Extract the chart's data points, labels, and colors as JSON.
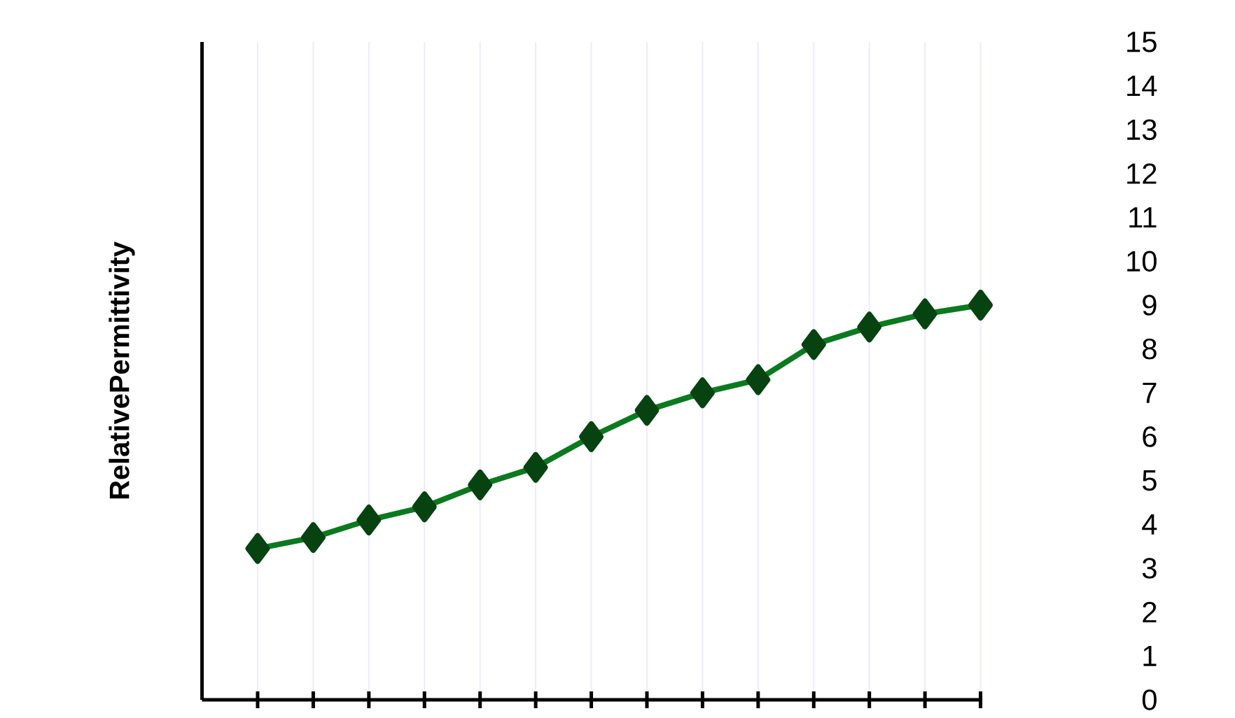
{
  "chart_data": {
    "type": "line",
    "ylabel": "RelativePermittivity",
    "categories": [
      null,
      null,
      null,
      null,
      null,
      null,
      null,
      null,
      null,
      null,
      null,
      null,
      null,
      null
    ],
    "ylim": [
      0,
      15
    ],
    "yticks": [
      0,
      1,
      2,
      3,
      4,
      5,
      6,
      7,
      8,
      9,
      10,
      11,
      12,
      13,
      14,
      15
    ],
    "grid": "x",
    "marker": "diamond",
    "line_style": "solid",
    "series": [
      {
        "color": "#0b7a1f",
        "values": [
          3.45,
          3.7,
          4.1,
          4.4,
          4.9,
          5.3,
          6.0,
          6.6,
          7.0,
          7.3,
          8.1,
          8.5,
          8.8,
          9.0
        ]
      }
    ]
  }
}
